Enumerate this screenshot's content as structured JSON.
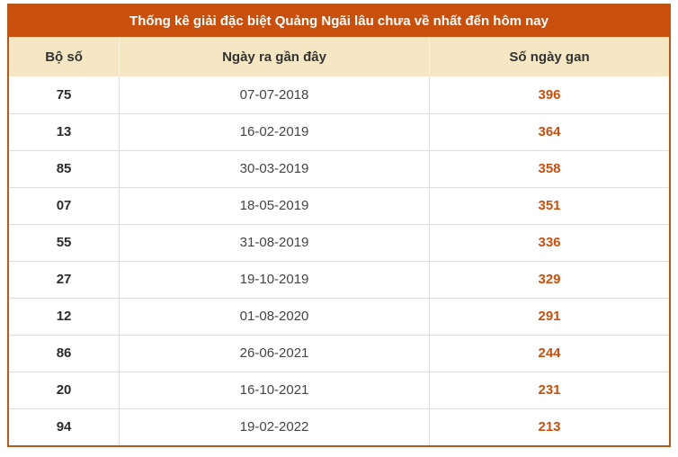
{
  "panel": {
    "title": "Thống kê giải đặc biệt Quảng Ngãi lâu chưa về nhất đến hôm nay"
  },
  "table": {
    "headers": [
      "Bộ số",
      "Ngày ra gần đây",
      "Số ngày gan"
    ],
    "rows": [
      {
        "pair": "75",
        "date": "07-07-2018",
        "gan": "396"
      },
      {
        "pair": "13",
        "date": "16-02-2019",
        "gan": "364"
      },
      {
        "pair": "85",
        "date": "30-03-2019",
        "gan": "358"
      },
      {
        "pair": "07",
        "date": "18-05-2019",
        "gan": "351"
      },
      {
        "pair": "55",
        "date": "31-08-2019",
        "gan": "336"
      },
      {
        "pair": "27",
        "date": "19-10-2019",
        "gan": "329"
      },
      {
        "pair": "12",
        "date": "01-08-2020",
        "gan": "291"
      },
      {
        "pair": "86",
        "date": "26-06-2021",
        "gan": "244"
      },
      {
        "pair": "20",
        "date": "16-10-2021",
        "gan": "231"
      },
      {
        "pair": "94",
        "date": "19-02-2022",
        "gan": "213"
      }
    ]
  },
  "colors": {
    "title_bar_bg": "#c94f0d",
    "title_text": "#ffffff",
    "panel_border": "#b5591d",
    "header_row_bg": "#f5e7c3",
    "header_text": "#333333",
    "pair_text": "#2b2b2b",
    "date_text": "#444444",
    "gan_text": "#c8500e",
    "grid_line": "#dedede"
  },
  "chart_data": {
    "type": "table",
    "title": "Thống kê giải đặc biệt Quảng Ngãi lâu chưa về nhất đến hôm nay",
    "columns": [
      "Bộ số",
      "Ngày ra gần đây",
      "Số ngày gan"
    ],
    "rows": [
      [
        "75",
        "07-07-2018",
        396
      ],
      [
        "13",
        "16-02-2019",
        364
      ],
      [
        "85",
        "30-03-2019",
        358
      ],
      [
        "07",
        "18-05-2019",
        351
      ],
      [
        "55",
        "31-08-2019",
        336
      ],
      [
        "27",
        "19-10-2019",
        329
      ],
      [
        "12",
        "01-08-2020",
        291
      ],
      [
        "86",
        "26-06-2021",
        244
      ],
      [
        "20",
        "16-10-2021",
        231
      ],
      [
        "94",
        "19-02-2022",
        213
      ]
    ]
  }
}
